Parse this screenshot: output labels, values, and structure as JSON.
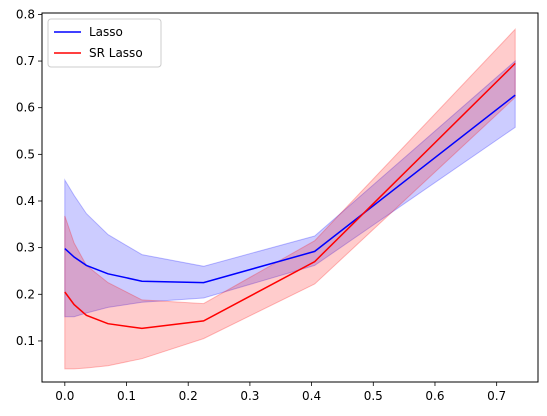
{
  "chart_data": {
    "type": "line",
    "title": "",
    "xlabel": "",
    "ylabel": "",
    "xlim": [
      -0.037,
      0.767
    ],
    "ylim": [
      0.012,
      0.803
    ],
    "xticks": [
      0.0,
      0.1,
      0.2,
      0.3,
      0.4,
      0.5,
      0.6,
      0.7
    ],
    "yticks": [
      0.1,
      0.2,
      0.3,
      0.4,
      0.5,
      0.6,
      0.7,
      0.8
    ],
    "grid": false,
    "legend_position": "top-left",
    "series": [
      {
        "name": "Lasso",
        "color": "#0000ff",
        "x": [
          0.0,
          0.015,
          0.035,
          0.07,
          0.125,
          0.225,
          0.405,
          0.73
        ],
        "y": [
          0.298,
          0.28,
          0.262,
          0.244,
          0.228,
          0.225,
          0.292,
          0.627
        ],
        "lower": [
          0.152,
          0.152,
          0.16,
          0.172,
          0.183,
          0.192,
          0.262,
          0.558
        ],
        "upper": [
          0.445,
          0.412,
          0.373,
          0.328,
          0.285,
          0.26,
          0.325,
          0.7
        ]
      },
      {
        "name": "SR Lasso",
        "color": "#ff0000",
        "x": [
          0.0,
          0.015,
          0.035,
          0.07,
          0.125,
          0.225,
          0.405,
          0.73
        ],
        "y": [
          0.205,
          0.178,
          0.155,
          0.137,
          0.127,
          0.143,
          0.27,
          0.695
        ],
        "lower": [
          0.04,
          0.04,
          0.042,
          0.047,
          0.062,
          0.105,
          0.222,
          0.622
        ],
        "upper": [
          0.368,
          0.31,
          0.262,
          0.225,
          0.188,
          0.18,
          0.315,
          0.768
        ]
      }
    ]
  }
}
